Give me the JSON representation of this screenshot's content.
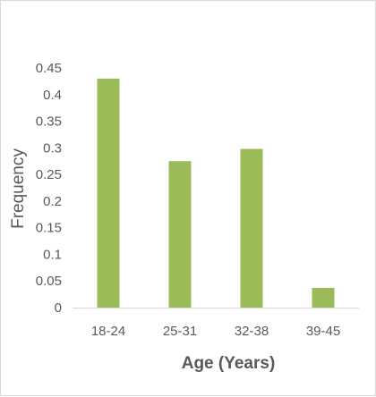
{
  "chart_data": {
    "type": "bar",
    "title": "",
    "xlabel": "Age (Years)",
    "ylabel": "Frequency",
    "categories": [
      "18-24",
      "25-31",
      "32-38",
      "39-45"
    ],
    "values": [
      0.43,
      0.275,
      0.298,
      0.037
    ],
    "ylim": [
      0,
      0.45
    ],
    "yticks": [
      0,
      0.05,
      0.1,
      0.15,
      0.2,
      0.25,
      0.3,
      0.35,
      0.4,
      0.45
    ],
    "ytick_labels": [
      "0",
      "0.05",
      "0.1",
      "0.15",
      "0.2",
      "0.25",
      "0.3",
      "0.35",
      "0.4",
      "0.45"
    ],
    "grid": false,
    "legend": "none",
    "colors": {
      "bar": "#9bbb59",
      "axis": "#d9d9d9",
      "text": "#595959"
    }
  }
}
